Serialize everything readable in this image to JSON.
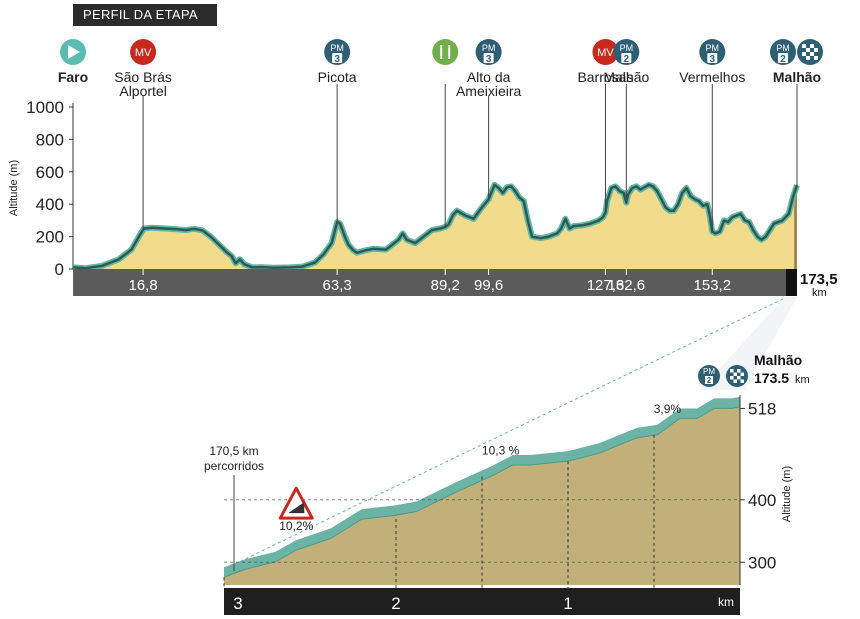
{
  "page_title": "PERFIL DA ETAPA",
  "colors": {
    "profile_fill": "#f2dc8c",
    "profile_line": "#2f5a53",
    "profile_glow": "#5fb7a6",
    "km_bar": "#5b5b5b",
    "climb_fill": "#c1b07a",
    "climb_top": "#6bb3a4",
    "pm_badge": "#2f5f75",
    "mv_badge": "#c8281e",
    "feed_badge": "#6fb04a",
    "start_badge": "#5bbcb1"
  },
  "chart_data": [
    {
      "type": "area",
      "ylabel": "Altitude (m)",
      "ylim": [
        0,
        1000
      ],
      "y_ticks": [
        "0",
        "200",
        "400",
        "600",
        "800",
        "1000"
      ],
      "x_unit": "km",
      "xlim": [
        0,
        173.5
      ],
      "km_labels": [
        "16,8",
        "63,3",
        "89,2",
        "99,6",
        "127,6",
        "132,6",
        "153,2"
      ],
      "km_label_values": [
        16.8,
        63.3,
        89.2,
        99.6,
        127.6,
        132.6,
        153.2
      ],
      "finish_km_label": "173,5",
      "finish_km_unit": "km",
      "profile": [
        [
          0,
          10
        ],
        [
          3,
          5
        ],
        [
          7,
          20
        ],
        [
          11,
          60
        ],
        [
          14,
          120
        ],
        [
          16,
          210
        ],
        [
          17,
          250
        ],
        [
          19,
          255
        ],
        [
          22,
          250
        ],
        [
          25,
          245
        ],
        [
          27,
          240
        ],
        [
          29,
          248
        ],
        [
          31,
          238
        ],
        [
          33,
          200
        ],
        [
          35,
          150
        ],
        [
          37,
          100
        ],
        [
          38,
          80
        ],
        [
          39,
          35
        ],
        [
          40,
          60
        ],
        [
          41,
          30
        ],
        [
          42,
          20
        ],
        [
          43,
          10
        ],
        [
          45,
          12
        ],
        [
          48,
          8
        ],
        [
          52,
          10
        ],
        [
          55,
          15
        ],
        [
          58,
          40
        ],
        [
          60,
          90
        ],
        [
          62,
          160
        ],
        [
          63.3,
          290
        ],
        [
          64,
          280
        ],
        [
          65,
          210
        ],
        [
          66,
          150
        ],
        [
          67,
          120
        ],
        [
          68,
          100
        ],
        [
          70,
          115
        ],
        [
          72,
          125
        ],
        [
          75,
          120
        ],
        [
          77,
          160
        ],
        [
          78,
          180
        ],
        [
          79,
          220
        ],
        [
          80,
          180
        ],
        [
          82,
          160
        ],
        [
          84,
          200
        ],
        [
          86,
          240
        ],
        [
          88,
          250
        ],
        [
          89.2,
          260
        ],
        [
          90,
          275
        ],
        [
          91,
          330
        ],
        [
          92,
          360
        ],
        [
          94,
          330
        ],
        [
          96,
          310
        ],
        [
          98,
          380
        ],
        [
          99.6,
          430
        ],
        [
          101,
          520
        ],
        [
          102,
          500
        ],
        [
          103,
          470
        ],
        [
          104,
          505
        ],
        [
          105,
          510
        ],
        [
          106,
          480
        ],
        [
          107,
          440
        ],
        [
          108,
          420
        ],
        [
          109,
          300
        ],
        [
          110,
          200
        ],
        [
          112,
          190
        ],
        [
          114,
          200
        ],
        [
          116,
          220
        ],
        [
          117,
          250
        ],
        [
          118,
          310
        ],
        [
          119,
          250
        ],
        [
          120,
          265
        ],
        [
          122,
          270
        ],
        [
          124,
          280
        ],
        [
          126,
          300
        ],
        [
          127,
          320
        ],
        [
          127.6,
          350
        ],
        [
          128,
          420
        ],
        [
          129,
          500
        ],
        [
          130,
          510
        ],
        [
          131,
          480
        ],
        [
          132,
          470
        ],
        [
          132.6,
          410
        ],
        [
          133,
          460
        ],
        [
          134,
          500
        ],
        [
          135,
          510
        ],
        [
          136,
          490
        ],
        [
          137,
          505
        ],
        [
          138,
          520
        ],
        [
          139,
          510
        ],
        [
          140,
          480
        ],
        [
          141,
          430
        ],
        [
          142,
          380
        ],
        [
          143,
          360
        ],
        [
          144,
          360
        ],
        [
          145,
          400
        ],
        [
          146,
          470
        ],
        [
          147,
          500
        ],
        [
          148,
          450
        ],
        [
          149,
          430
        ],
        [
          150,
          420
        ],
        [
          151,
          390
        ],
        [
          152,
          400
        ],
        [
          152.5,
          340
        ],
        [
          153.2,
          230
        ],
        [
          154,
          220
        ],
        [
          155,
          230
        ],
        [
          156,
          300
        ],
        [
          157,
          290
        ],
        [
          158,
          320
        ],
        [
          160,
          340
        ],
        [
          161,
          300
        ],
        [
          162,
          290
        ],
        [
          163,
          240
        ],
        [
          164,
          200
        ],
        [
          165,
          180
        ],
        [
          166,
          200
        ],
        [
          168,
          280
        ],
        [
          170,
          300
        ],
        [
          171.5,
          340
        ],
        [
          172.5,
          440
        ],
        [
          173.5,
          518
        ]
      ]
    },
    {
      "type": "area",
      "title": "Malhão",
      "ylabel": "Altitude (m)",
      "y_ticks": [
        "300",
        "400",
        "518"
      ],
      "y_tick_values": [
        300,
        400,
        518
      ],
      "ylim": [
        290,
        525
      ],
      "x_labels": [
        "3",
        "2",
        "1"
      ],
      "x_unit": "km",
      "xlim": [
        3,
        0
      ],
      "profile": [
        [
          3.0,
          300
        ],
        [
          2.88,
          310
        ],
        [
          2.7,
          320
        ],
        [
          2.58,
          335
        ],
        [
          2.38,
          350
        ],
        [
          2.2,
          375
        ],
        [
          2.0,
          380
        ],
        [
          1.88,
          385
        ],
        [
          1.65,
          410
        ],
        [
          1.45,
          430
        ],
        [
          1.32,
          445
        ],
        [
          1.22,
          445
        ],
        [
          1.0,
          450
        ],
        [
          0.82,
          460
        ],
        [
          0.6,
          480
        ],
        [
          0.48,
          484
        ],
        [
          0.35,
          505
        ],
        [
          0.25,
          505
        ],
        [
          0.15,
          518
        ],
        [
          0.05,
          518
        ],
        [
          0.0,
          520
        ]
      ],
      "gradient_annotations": [
        {
          "text": "10,2%",
          "km": 2.58
        },
        {
          "text": "10,3 %",
          "km": 1.45
        },
        {
          "text": "3,9%",
          "km": 0.48
        }
      ],
      "start_note": [
        "170,5 km",
        "percorridos"
      ],
      "summit_name": "Malhão",
      "summit_km": "173.5",
      "summit_km_unit": "km"
    }
  ],
  "waypoints": [
    {
      "name": "Faro",
      "badge": "start",
      "km": 0,
      "bold": true
    },
    {
      "name": "São Brás\nAlportel",
      "badge": "MV",
      "km": 16.8,
      "bold": false
    },
    {
      "name": "Picota",
      "badge": "PM",
      "cat": "3",
      "km": 63.3,
      "bold": false
    },
    {
      "name": "",
      "badge": "feed",
      "km": 89.2,
      "bold": false
    },
    {
      "name": "Alto da\nAmeixieira",
      "badge": "PM",
      "cat": "3",
      "km": 99.6,
      "bold": false
    },
    {
      "name": "Barrosas",
      "badge": "MV",
      "km": 127.6,
      "bold": false
    },
    {
      "name": "Malhão",
      "badge": "PM",
      "cat": "2",
      "km": 132.6,
      "bold": false
    },
    {
      "name": "Vermelhos",
      "badge": "PM",
      "cat": "3",
      "km": 153.2,
      "bold": false
    },
    {
      "name": "Malhão",
      "badge": "PM",
      "cat": "2",
      "km": 173.5,
      "bold": true,
      "finish": true
    }
  ],
  "badge_labels": {
    "pm": "PM",
    "mv": "MV"
  }
}
